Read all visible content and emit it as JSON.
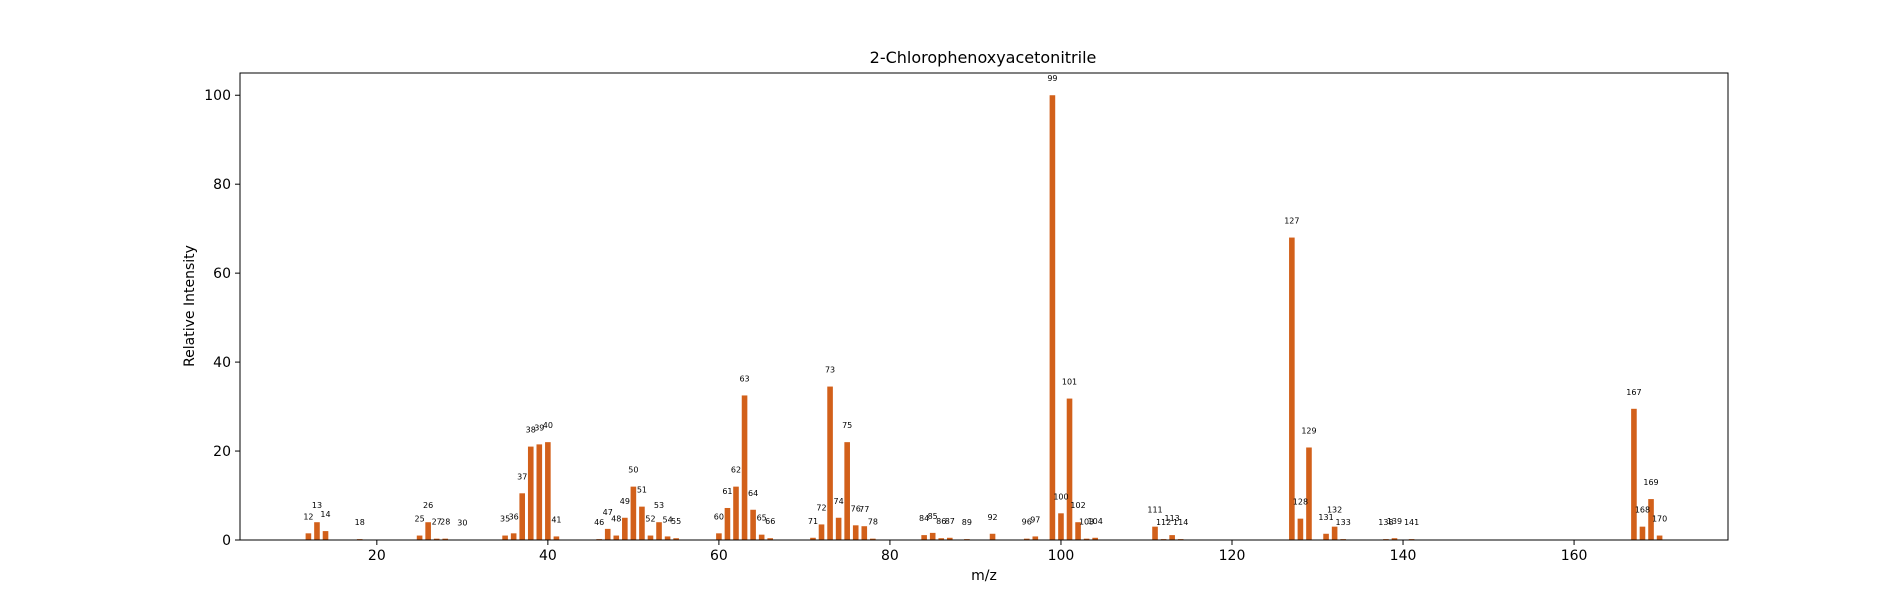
{
  "chart_data": {
    "type": "bar",
    "title": "2-Chlorophenoxyacetonitrile",
    "xlabel": "m/z",
    "ylabel": "Relative Intensity",
    "xlim": [
      4,
      178
    ],
    "ylim": [
      0,
      105
    ],
    "xticks": [
      20,
      40,
      60,
      80,
      100,
      120,
      140,
      160
    ],
    "yticks": [
      0,
      20,
      40,
      60,
      80,
      100
    ],
    "bar_color": "#d2601a",
    "grid": false,
    "x": [
      12,
      13,
      14,
      18,
      25,
      26,
      27,
      28,
      30,
      35,
      36,
      37,
      38,
      39,
      40,
      41,
      46,
      47,
      48,
      49,
      50,
      51,
      52,
      53,
      54,
      55,
      60,
      61,
      62,
      63,
      64,
      65,
      66,
      71,
      72,
      73,
      74,
      75,
      76,
      77,
      78,
      84,
      85,
      86,
      87,
      89,
      92,
      96,
      97,
      99,
      100,
      101,
      102,
      103,
      104,
      111,
      112,
      113,
      114,
      127,
      128,
      129,
      131,
      132,
      133,
      138,
      139,
      141,
      167,
      168,
      169,
      170
    ],
    "values": [
      1.5,
      4.0,
      2.0,
      0.2,
      1.0,
      4.0,
      0.3,
      0.3,
      0.1,
      1.0,
      1.5,
      10.5,
      21.0,
      21.5,
      22.0,
      0.8,
      0.2,
      2.5,
      1.0,
      5.0,
      12.0,
      7.5,
      1.0,
      4.0,
      0.8,
      0.4,
      1.5,
      7.2,
      12.0,
      32.5,
      6.8,
      1.2,
      0.4,
      0.5,
      3.5,
      34.5,
      5.0,
      22.0,
      3.3,
      3.1,
      0.3,
      1.1,
      1.6,
      0.4,
      0.5,
      0.2,
      1.4,
      0.3,
      0.8,
      100.0,
      6.0,
      31.8,
      4.0,
      0.3,
      0.5,
      3.0,
      0.2,
      1.1,
      0.2,
      68.0,
      4.8,
      20.8,
      1.4,
      3.0,
      0.2,
      0.2,
      0.4,
      0.2,
      29.5,
      3.0,
      9.2,
      1.0
    ],
    "labels": [
      "12",
      "13",
      "14",
      "18",
      "25",
      "26",
      "27",
      "28",
      "30",
      "35",
      "36",
      "37",
      "38",
      "39",
      "40",
      "41",
      "46",
      "47",
      "48",
      "49",
      "50",
      "51",
      "52",
      "53",
      "54",
      "55",
      "60",
      "61",
      "62",
      "63",
      "64",
      "65",
      "66",
      "71",
      "72",
      "73",
      "74",
      "75",
      "76",
      "77",
      "78",
      "84",
      "85",
      "86",
      "87",
      "89",
      "92",
      "96",
      "97",
      "99",
      "100",
      "101",
      "102",
      "103",
      "104",
      "111",
      "112",
      "113",
      "114",
      "127",
      "128",
      "129",
      "131",
      "132",
      "133",
      "138",
      "139",
      "141",
      "167",
      "168",
      "169",
      "170"
    ]
  }
}
